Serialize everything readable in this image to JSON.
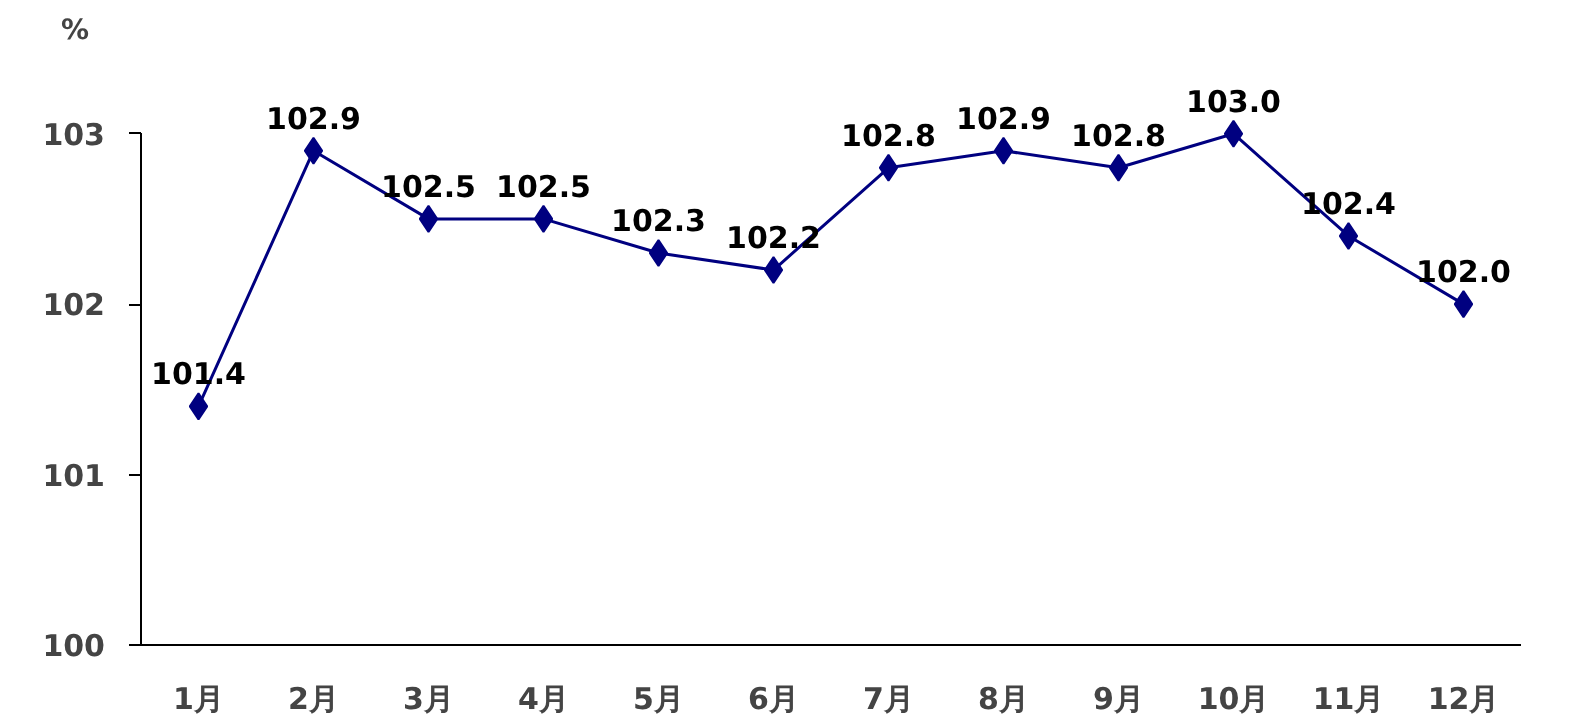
{
  "chart_data": {
    "type": "line",
    "ylabel": "%",
    "categories": [
      "1月",
      "2月",
      "3月",
      "4月",
      "5月",
      "6月",
      "7月",
      "8月",
      "9月",
      "10月",
      "11月",
      "12月"
    ],
    "series": [
      {
        "color": "#000080",
        "values": [
          101.4,
          102.9,
          102.5,
          102.5,
          102.3,
          102.2,
          102.8,
          102.9,
          102.8,
          103.0,
          102.4,
          102.0
        ],
        "value_labels": [
          "101.4",
          "102.9",
          "102.5",
          "102.5",
          "102.3",
          "102.2",
          "102.8",
          "102.9",
          "102.8",
          "103.0",
          "102.4",
          "102.0"
        ]
      }
    ],
    "ylim": [
      100,
      103
    ],
    "yticks": [
      100,
      101,
      102,
      103
    ],
    "marker": "diamond",
    "line_style": "solid"
  }
}
